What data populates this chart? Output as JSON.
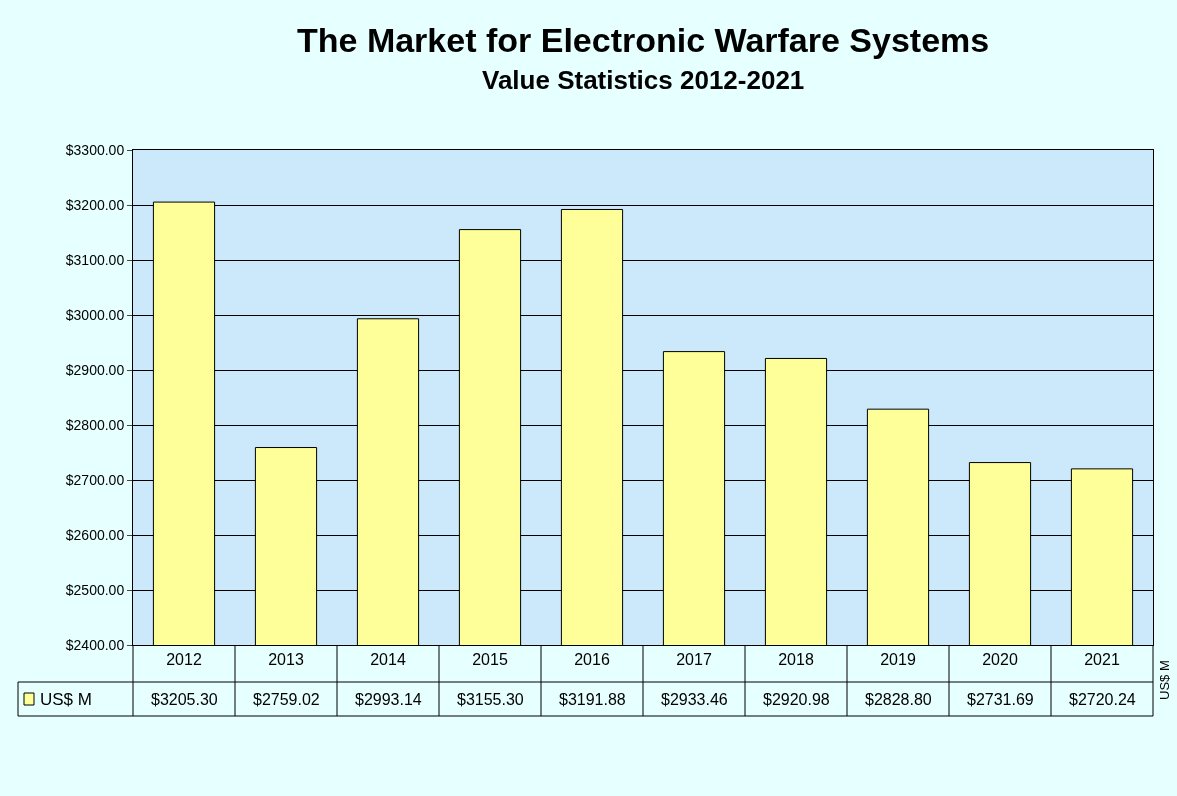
{
  "chart_data": {
    "type": "bar",
    "title": "The Market for Electronic Warfare Systems",
    "subtitle": "Value Statistics 2012-2021",
    "categories": [
      "2012",
      "2013",
      "2014",
      "2015",
      "2016",
      "2017",
      "2018",
      "2019",
      "2020",
      "2021"
    ],
    "series": [
      {
        "name": "US$ M",
        "color": "#ffff99",
        "values": [
          3205.3,
          2759.02,
          2993.14,
          3155.3,
          3191.88,
          2933.46,
          2920.98,
          2828.8,
          2731.69,
          2720.24
        ],
        "value_labels": [
          "$3205.30",
          "$2759.02",
          "$2993.14",
          "$3155.30",
          "$3191.88",
          "$2933.46",
          "$2920.98",
          "$2828.80",
          "$2731.69",
          "$2720.24"
        ]
      }
    ],
    "ylim": [
      2400,
      3300
    ],
    "yticks": [
      {
        "value": 2400,
        "label": "$2400.00"
      },
      {
        "value": 2500,
        "label": "$2500.00"
      },
      {
        "value": 2600,
        "label": "$2600.00"
      },
      {
        "value": 2700,
        "label": "$2700.00"
      },
      {
        "value": 2800,
        "label": "$2800.00"
      },
      {
        "value": 2900,
        "label": "$2900.00"
      },
      {
        "value": 3000,
        "label": "$3000.00"
      },
      {
        "value": 3100,
        "label": "$3100.00"
      },
      {
        "value": 3200,
        "label": "$3200.00"
      },
      {
        "value": 3300,
        "label": "$3300.00"
      }
    ],
    "annotations": [
      "US$ M"
    ],
    "grid": "y",
    "legend": "bottom left"
  }
}
